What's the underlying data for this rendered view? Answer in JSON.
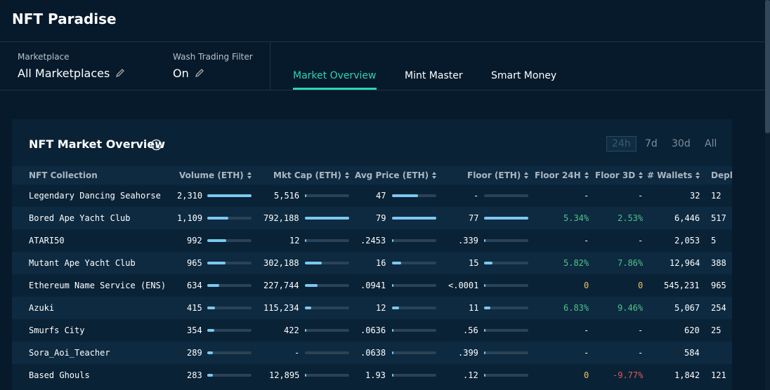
{
  "header": {
    "title": "NFT Paradise"
  },
  "filters": [
    {
      "label": "Marketplace",
      "value": "All Marketplaces"
    },
    {
      "label": "Wash Trading Filter",
      "value": "On"
    }
  ],
  "tabs": {
    "items": [
      "Market Overview",
      "Mint Master",
      "Smart Money"
    ],
    "active": 0
  },
  "panel": {
    "title": "NFT Market Overview",
    "ranges": {
      "items": [
        "24h",
        "7d",
        "30d",
        "All"
      ],
      "active": 0
    }
  },
  "table": {
    "columns": [
      "NFT Collection",
      "Volume (ETH)",
      "Mkt Cap (ETH)",
      "Avg Price (ETH)",
      "Floor (ETH)",
      "Floor 24H",
      "Floor 3D",
      "# Wallets",
      "Deplo"
    ],
    "bar_columns": [
      1,
      2,
      3,
      4
    ],
    "rows": [
      [
        "Legendary Dancing Seahorse",
        "2,310",
        "5,516",
        "47",
        "-",
        "-",
        "-",
        "32",
        "12"
      ],
      [
        "Bored Ape Yacht Club",
        "1,109",
        "792,188",
        "79",
        "77",
        "5.34%",
        "2.53%",
        "6,446",
        "517"
      ],
      [
        "ATARI50",
        "992",
        "12",
        ".2453",
        ".339",
        "-",
        "-",
        "2,053",
        "5"
      ],
      [
        "Mutant Ape Yacht Club",
        "965",
        "302,188",
        "16",
        "15",
        "5.82%",
        "7.86%",
        "12,964",
        "388"
      ],
      [
        "Ethereum Name Service (ENS)",
        "634",
        "227,744",
        ".0941",
        "<.0001",
        "0",
        "0",
        "545,231",
        "965"
      ],
      [
        "Azuki",
        "415",
        "115,234",
        "12",
        "11",
        "6.83%",
        "9.46%",
        "5,067",
        "254"
      ],
      [
        "Smurfs City",
        "354",
        "422",
        ".0636",
        ".56",
        "-",
        "-",
        "620",
        "25"
      ],
      [
        "Sora_Aoi_Teacher",
        "289",
        "-",
        ".0638",
        ".399",
        "-",
        "-",
        "584",
        null
      ],
      [
        "Based Ghouls",
        "283",
        "12,895",
        "1.93",
        ".12",
        "0",
        "-9.77%",
        "1,842",
        "121"
      ]
    ]
  }
}
